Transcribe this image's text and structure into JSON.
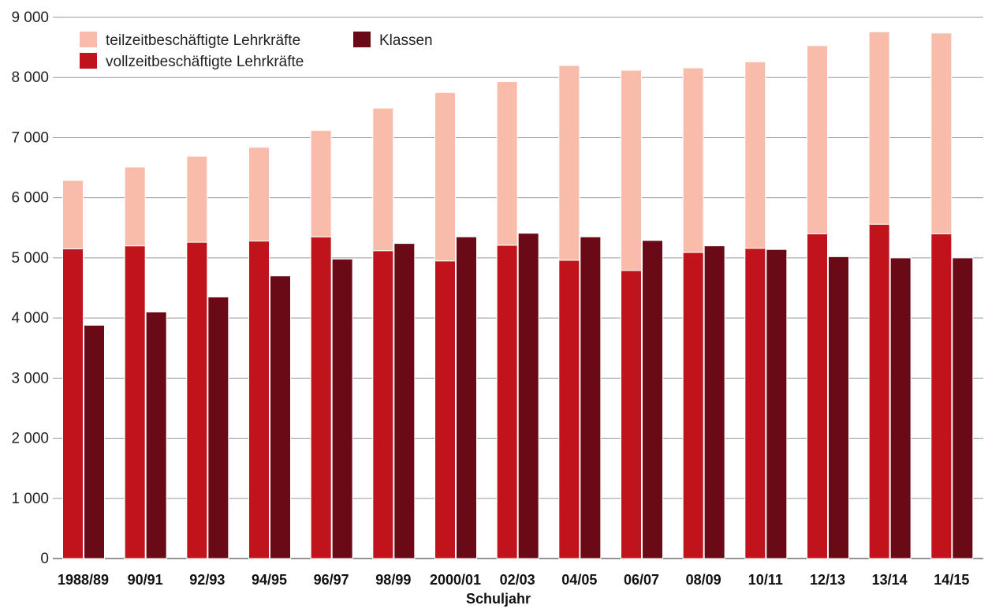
{
  "chart_data": {
    "type": "bar",
    "xlabel": "Schuljahr",
    "ylabel": "",
    "ylim": [
      0,
      9000
    ],
    "yticks": [
      0,
      1000,
      2000,
      3000,
      4000,
      5000,
      6000,
      7000,
      8000,
      9000
    ],
    "ytick_labels": [
      "0",
      "1 000",
      "2 000",
      "3 000",
      "4 000",
      "5 000",
      "6 000",
      "7 000",
      "8 000",
      "9 000"
    ],
    "grid": true,
    "legend_position": "top-left",
    "categories": [
      "1988/89",
      "90/91",
      "92/93",
      "94/95",
      "96/97",
      "98/99",
      "2000/01",
      "02/03",
      "04/05",
      "06/07",
      "08/09",
      "10/11",
      "12/13",
      "13/14",
      "14/15"
    ],
    "series": [
      {
        "name": "vollzeitbeschäftigte Lehrkräfte",
        "color": "#c0141c",
        "stack": "lehrkraefte",
        "values": [
          5150,
          5200,
          5260,
          5280,
          5350,
          5120,
          4950,
          5210,
          4960,
          4790,
          5090,
          5160,
          5400,
          5560,
          5400
        ]
      },
      {
        "name": "teilzeitbeschäftigte Lehrkräfte",
        "color": "#f9bcab",
        "stack": "lehrkraefte",
        "values": [
          1140,
          1310,
          1430,
          1560,
          1770,
          2370,
          2800,
          2720,
          3240,
          3330,
          3070,
          3100,
          3130,
          3200,
          3340
        ]
      },
      {
        "name": "Klassen",
        "color": "#690a16",
        "stack": "klassen",
        "values": [
          3880,
          4100,
          4350,
          4700,
          4980,
          5240,
          5350,
          5410,
          5350,
          5290,
          5200,
          5140,
          5020,
          5000,
          5000
        ]
      }
    ],
    "legend": [
      {
        "label": "teilzeitbeschäftigte Lehrkräfte",
        "color": "#f9bcab"
      },
      {
        "label": "Klassen",
        "color": "#690a16"
      },
      {
        "label": "vollzeitbeschäftigte Lehrkräfte",
        "color": "#c0141c"
      }
    ]
  }
}
